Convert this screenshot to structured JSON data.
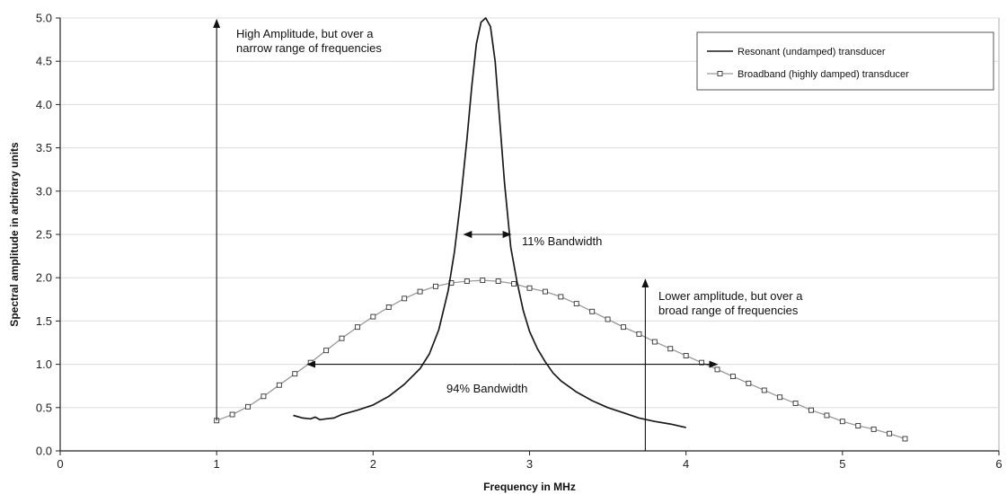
{
  "colors": {
    "resonant": "#1a1a1a",
    "broadband": "#9a9a9a",
    "marker_fill": "#ffffff",
    "marker_stroke": "#333333",
    "grid": "#dcdcdc",
    "axis": "#222222"
  },
  "chart_data": {
    "type": "line",
    "title": "",
    "xlabel": "Frequency in MHz",
    "ylabel": "Spectral amplitude in arbitrary units",
    "xlim": [
      0,
      6
    ],
    "ylim": [
      0,
      5
    ],
    "x_ticks": [
      "0",
      "1",
      "2",
      "3",
      "4",
      "5",
      "6"
    ],
    "y_ticks": [
      "0.0",
      "0.5",
      "1.0",
      "1.5",
      "2.0",
      "2.5",
      "3.0",
      "3.5",
      "4.0",
      "4.5",
      "5.0"
    ],
    "grid": "horizontal",
    "legend_position": "top-right",
    "series": [
      {
        "name": "Resonant (undamped) transducer",
        "marker": "none",
        "x": [
          1.49,
          1.55,
          1.6,
          1.63,
          1.66,
          1.7,
          1.75,
          1.8,
          1.9,
          2.0,
          2.1,
          2.2,
          2.3,
          2.36,
          2.42,
          2.48,
          2.52,
          2.56,
          2.6,
          2.63,
          2.66,
          2.69,
          2.72,
          2.75,
          2.78,
          2.81,
          2.84,
          2.88,
          2.92,
          2.96,
          3.0,
          3.05,
          3.1,
          3.15,
          3.2,
          3.3,
          3.4,
          3.5,
          3.6,
          3.7,
          3.8,
          3.9,
          4.0
        ],
        "y": [
          0.41,
          0.38,
          0.37,
          0.39,
          0.36,
          0.37,
          0.38,
          0.42,
          0.47,
          0.53,
          0.63,
          0.77,
          0.95,
          1.12,
          1.4,
          1.85,
          2.3,
          2.9,
          3.6,
          4.2,
          4.7,
          4.95,
          5.0,
          4.9,
          4.5,
          3.8,
          3.1,
          2.35,
          1.95,
          1.62,
          1.38,
          1.18,
          1.03,
          0.9,
          0.81,
          0.68,
          0.58,
          0.5,
          0.44,
          0.38,
          0.34,
          0.31,
          0.27
        ]
      },
      {
        "name": "Broadband (highly damped) transducer",
        "marker": "square",
        "x": [
          1.0,
          1.1,
          1.2,
          1.3,
          1.4,
          1.5,
          1.6,
          1.7,
          1.8,
          1.9,
          2.0,
          2.1,
          2.2,
          2.3,
          2.4,
          2.5,
          2.6,
          2.7,
          2.8,
          2.9,
          3.0,
          3.1,
          3.2,
          3.3,
          3.4,
          3.5,
          3.6,
          3.7,
          3.8,
          3.9,
          4.0,
          4.1,
          4.2,
          4.3,
          4.4,
          4.5,
          4.6,
          4.7,
          4.8,
          4.9,
          5.0,
          5.1,
          5.2,
          5.3,
          5.4
        ],
        "y": [
          0.35,
          0.42,
          0.51,
          0.63,
          0.76,
          0.89,
          1.02,
          1.16,
          1.3,
          1.43,
          1.55,
          1.66,
          1.76,
          1.84,
          1.9,
          1.94,
          1.96,
          1.97,
          1.96,
          1.93,
          1.88,
          1.84,
          1.78,
          1.7,
          1.61,
          1.52,
          1.43,
          1.35,
          1.26,
          1.18,
          1.1,
          1.02,
          0.94,
          0.86,
          0.78,
          0.7,
          0.62,
          0.55,
          0.47,
          0.41,
          0.34,
          0.29,
          0.25,
          0.2,
          0.14
        ]
      }
    ],
    "annotations": [
      {
        "text_lines": [
          "High Amplitude, but over a",
          "narrow range of frequencies"
        ],
        "arrow": {
          "x": 1.0,
          "y_from": 0.35,
          "y_to": 5.0
        }
      },
      {
        "text_lines": [
          "Lower amplitude, but over a",
          "broad range of frequencies"
        ],
        "arrow": {
          "x": 3.74,
          "y_from": 0.0,
          "y_to": 2.0
        }
      },
      {
        "text": "11% Bandwidth",
        "arrow": {
          "y": 2.5,
          "x_from": 2.58,
          "x_to": 2.88
        }
      },
      {
        "text": "94% Bandwidth",
        "arrow": {
          "y": 1.0,
          "x_from": 1.58,
          "x_to": 4.2
        }
      }
    ]
  }
}
